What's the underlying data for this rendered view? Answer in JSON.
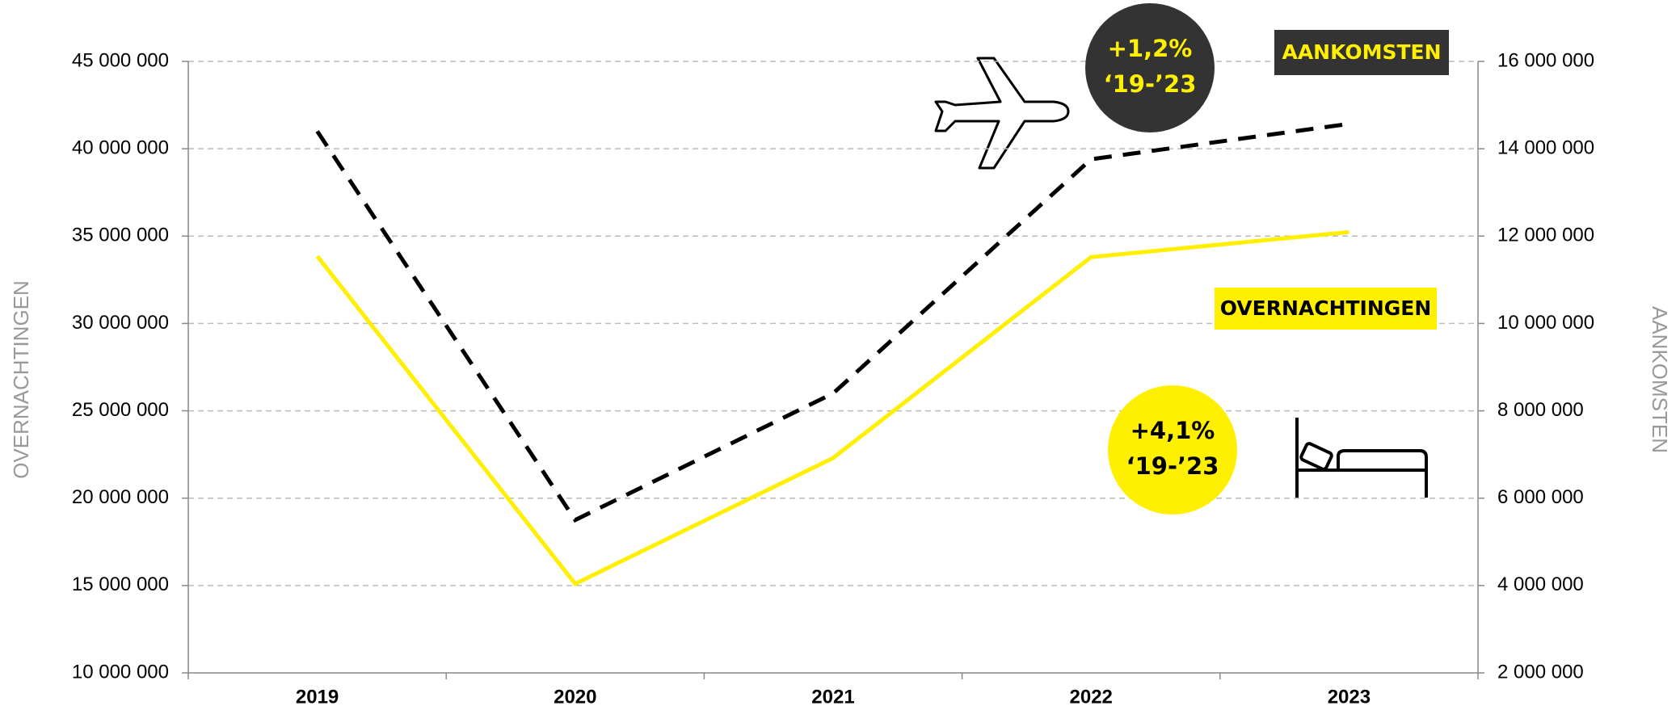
{
  "chart_data": {
    "type": "line",
    "categories": [
      "2019",
      "2020",
      "2021",
      "2022",
      "2023"
    ],
    "y_label": "OVERNACHTINGEN",
    "y2_label": "AANKOMSTEN",
    "series": [
      {
        "name": "OVERNACHTINGEN",
        "color": "#ffef00",
        "values": [
          33850000,
          15100000,
          22300000,
          33800000,
          35230000
        ]
      },
      {
        "name": "AANKOMSTEN",
        "color": "#000000",
        "dashed": true,
        "axis": "y2",
        "values": [
          14400000,
          5500000,
          8400000,
          13760000,
          14570000
        ]
      }
    ],
    "ylim": [
      10000000,
      45000000
    ],
    "yticks": [
      {
        "value": 10000000,
        "label": "10 000 000"
      },
      {
        "value": 15000000,
        "label": "15 000 000"
      },
      {
        "value": 20000000,
        "label": "20 000 000"
      },
      {
        "value": 25000000,
        "label": "25 000 000"
      },
      {
        "value": 30000000,
        "label": "30 000 000"
      },
      {
        "value": 35000000,
        "label": "35 000 000"
      },
      {
        "value": 40000000,
        "label": "40 000 000"
      },
      {
        "value": 45000000,
        "label": "45 000 000"
      }
    ],
    "y2lim": [
      2000000,
      16000000
    ],
    "y2ticks": [
      {
        "value": 2000000,
        "label": "2 000 000"
      },
      {
        "value": 4000000,
        "label": "4 000 000"
      },
      {
        "value": 6000000,
        "label": "6 000 000"
      },
      {
        "value": 8000000,
        "label": "8 000 000"
      },
      {
        "value": 10000000,
        "label": "10 000 000"
      },
      {
        "value": 12000000,
        "label": "12 000 000"
      },
      {
        "value": 14000000,
        "label": "14 000 000"
      },
      {
        "value": 16000000,
        "label": "16 000 000"
      }
    ],
    "grid": true,
    "annotations": [
      {
        "lines": [
          "+1,2%",
          "‘19-’23"
        ]
      },
      {
        "lines": [
          "+4,1%",
          "‘19-’23"
        ]
      }
    ]
  }
}
